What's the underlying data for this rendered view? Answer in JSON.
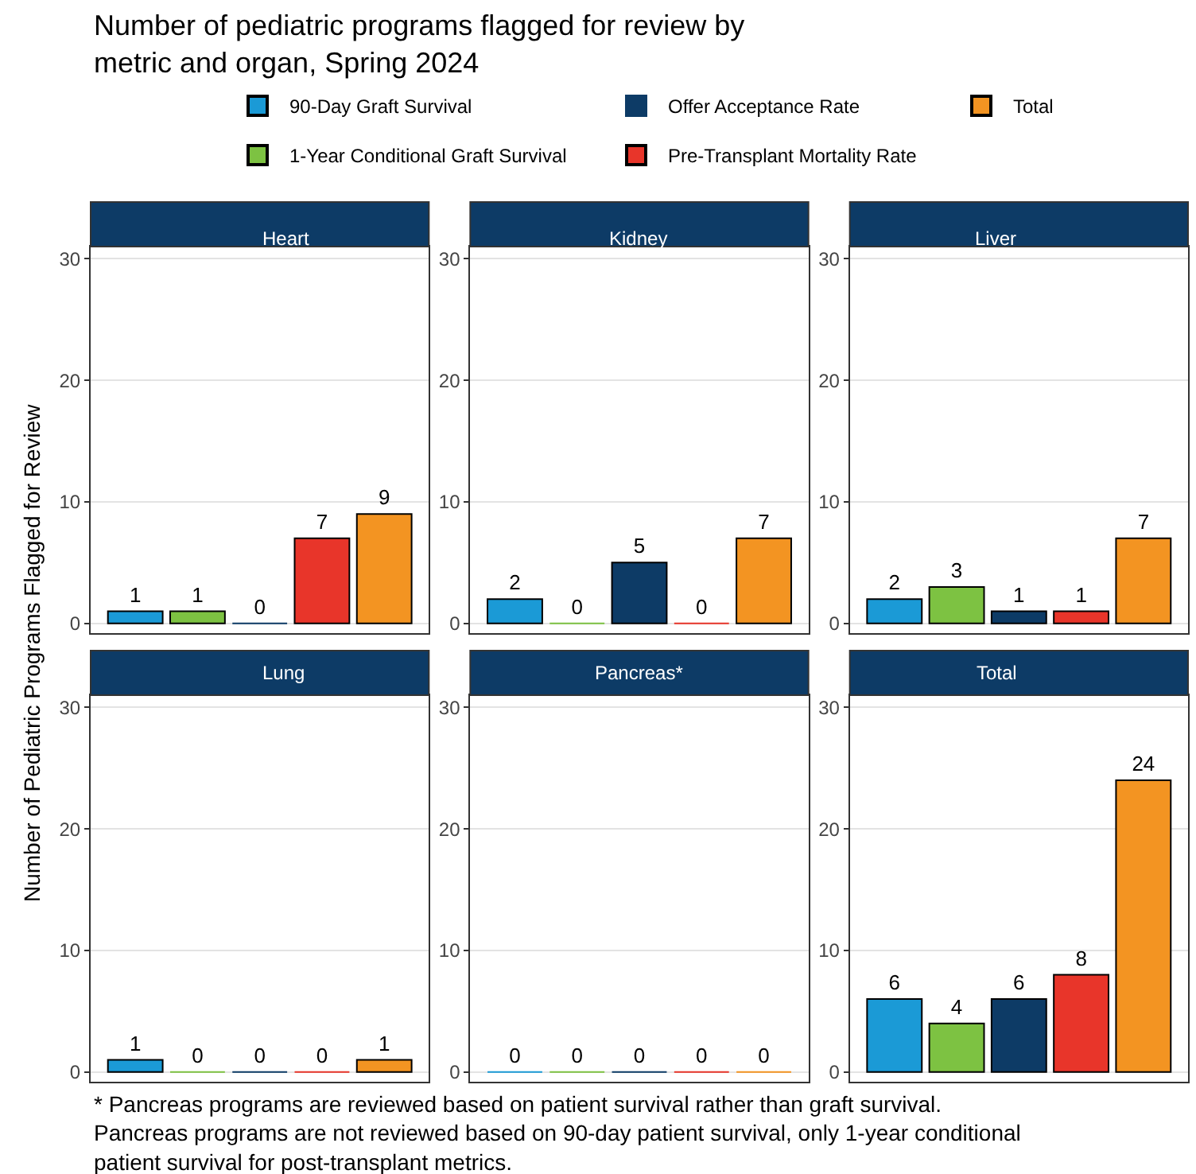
{
  "chart_data": [
    {
      "type": "bar",
      "title": "Heart",
      "categories": [
        null
      ],
      "ylim": [
        -0.8,
        31
      ],
      "yticks": [
        0,
        10,
        20,
        30
      ],
      "grid": "y",
      "data_labels": true,
      "legend": "top",
      "annotations": [
        "Number of pediatric programs flagged for review by\nmetric and organ, Spring 2024"
      ],
      "ylabel": "Number of Pediatric Programs Flagged for Review",
      "series": [
        {
          "name": "90-Day Graft Survival",
          "color": "#1b9ad6",
          "values": [
            1
          ]
        },
        {
          "name": "1-Year Conditional Graft Survival",
          "color": "#7dc242",
          "values": [
            1
          ]
        },
        {
          "name": "Offer Acceptance Rate",
          "color": "#0d3b66",
          "values": [
            0
          ]
        },
        {
          "name": "Pre-Transplant Mortality Rate",
          "color": "#e8352a",
          "values": [
            7
          ]
        },
        {
          "name": "Total",
          "color": "#f39422",
          "values": [
            9
          ]
        }
      ]
    },
    {
      "type": "bar",
      "title": "Kidney",
      "categories": [
        null
      ],
      "ylim": [
        -0.8,
        31
      ],
      "yticks": [
        0,
        10,
        20,
        30
      ],
      "grid": "y",
      "data_labels": true,
      "series": [
        {
          "color": "#1b9ad6",
          "values": [
            2
          ]
        },
        {
          "color": "#7dc242",
          "values": [
            0
          ]
        },
        {
          "color": "#0d3b66",
          "values": [
            5
          ]
        },
        {
          "color": "#e8352a",
          "values": [
            0
          ]
        },
        {
          "color": "#f39422",
          "values": [
            7
          ]
        }
      ]
    },
    {
      "type": "bar",
      "title": "Liver",
      "categories": [
        null
      ],
      "ylim": [
        -0.8,
        31
      ],
      "yticks": [
        0,
        10,
        20,
        30
      ],
      "grid": "y",
      "data_labels": true,
      "series": [
        {
          "color": "#1b9ad6",
          "values": [
            2
          ]
        },
        {
          "color": "#7dc242",
          "values": [
            3
          ]
        },
        {
          "color": "#0d3b66",
          "values": [
            1
          ]
        },
        {
          "color": "#e8352a",
          "values": [
            1
          ]
        },
        {
          "color": "#f39422",
          "values": [
            7
          ]
        }
      ]
    },
    {
      "type": "bar",
      "title": "Lung",
      "categories": [
        null
      ],
      "ylim": [
        -0.8,
        31
      ],
      "yticks": [
        0,
        10,
        20,
        30
      ],
      "grid": "y",
      "data_labels": true,
      "series": [
        {
          "color": "#1b9ad6",
          "values": [
            1
          ]
        },
        {
          "color": "#7dc242",
          "values": [
            0
          ]
        },
        {
          "color": "#0d3b66",
          "values": [
            0
          ]
        },
        {
          "color": "#e8352a",
          "values": [
            0
          ]
        },
        {
          "color": "#f39422",
          "values": [
            1
          ]
        }
      ]
    },
    {
      "type": "bar",
      "title": "Pancreas*",
      "categories": [
        null
      ],
      "ylim": [
        -0.8,
        31
      ],
      "yticks": [
        0,
        10,
        20,
        30
      ],
      "grid": "y",
      "data_labels": true,
      "series": [
        {
          "color": "#1b9ad6",
          "values": [
            0
          ]
        },
        {
          "color": "#7dc242",
          "values": [
            0
          ]
        },
        {
          "color": "#0d3b66",
          "values": [
            0
          ]
        },
        {
          "color": "#e8352a",
          "values": [
            0
          ]
        },
        {
          "color": "#f39422",
          "values": [
            0
          ]
        }
      ]
    },
    {
      "type": "bar",
      "title": "Total",
      "categories": [
        null
      ],
      "ylim": [
        -0.8,
        31
      ],
      "yticks": [
        0,
        10,
        20,
        30
      ],
      "grid": "y",
      "data_labels": true,
      "annotations": [
        "* Pancreas programs are reviewed based on patient survival rather than graft survival.\nPancreas programs are not reviewed based on 90-day patient survival, only 1-year conditional\npatient survival for post-transplant metrics."
      ],
      "series": [
        {
          "color": "#1b9ad6",
          "values": [
            6
          ]
        },
        {
          "color": "#7dc242",
          "values": [
            4
          ]
        },
        {
          "color": "#0d3b66",
          "values": [
            6
          ]
        },
        {
          "color": "#e8352a",
          "values": [
            8
          ]
        },
        {
          "color": "#f39422",
          "values": [
            24
          ]
        }
      ]
    }
  ]
}
